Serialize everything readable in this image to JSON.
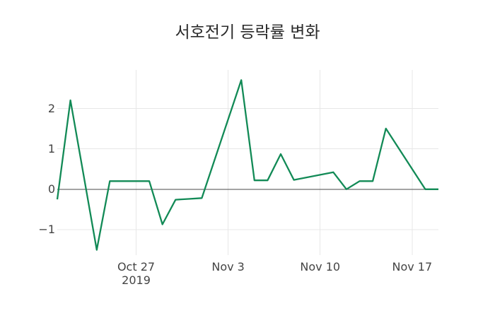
{
  "title": "서호전기 등락률 변화",
  "colors": {
    "line": "#128a56",
    "grid": "#e7e7e7",
    "zero_line": "#4a4a4a",
    "tick_text": "#444444",
    "title_text": "#2b2b2b",
    "background": "#ffffff"
  },
  "chart_data": {
    "type": "line",
    "title": "서호전기 등락률 변화",
    "xlabel": "",
    "ylabel": "",
    "legend": false,
    "grid": true,
    "zeroline": true,
    "x_range": [
      "2019-10-21",
      "2019-11-19"
    ],
    "y_range": [
      -1.63,
      2.95
    ],
    "y_ticks": [
      {
        "value": 2,
        "label": "2"
      },
      {
        "value": 1,
        "label": "1"
      },
      {
        "value": 0,
        "label": "0"
      },
      {
        "value": -1,
        "label": "−1"
      }
    ],
    "x_ticks": [
      {
        "day_offset": 6,
        "label": "Oct 27",
        "sublabel": "2019"
      },
      {
        "day_offset": 13,
        "label": "Nov 3",
        "sublabel": ""
      },
      {
        "day_offset": 20,
        "label": "Nov 10",
        "sublabel": ""
      },
      {
        "day_offset": 27,
        "label": "Nov 17",
        "sublabel": ""
      }
    ],
    "series": [
      {
        "name": "서호전기 등락률",
        "color": "#128a56",
        "dates": [
          "2019-10-21",
          "2019-10-22",
          "2019-10-23",
          "2019-10-24",
          "2019-10-25",
          "2019-10-28",
          "2019-10-29",
          "2019-10-30",
          "2019-10-31",
          "2019-11-01",
          "2019-11-04",
          "2019-11-05",
          "2019-11-06",
          "2019-11-07",
          "2019-11-08",
          "2019-11-11",
          "2019-11-12",
          "2019-11-13",
          "2019-11-14",
          "2019-11-15",
          "2019-11-18",
          "2019-11-19"
        ],
        "day_offsets": [
          0,
          1,
          2,
          3,
          4,
          7,
          8,
          9,
          10,
          11,
          14,
          15,
          16,
          17,
          18,
          21,
          22,
          23,
          24,
          25,
          28,
          29
        ],
        "values": [
          -0.25,
          2.2,
          0.35,
          -1.5,
          0.2,
          0.2,
          -0.87,
          -0.26,
          -0.24,
          -0.22,
          2.7,
          0.22,
          0.22,
          0.87,
          0.23,
          0.42,
          0,
          0.2,
          0.2,
          1.5,
          0,
          0
        ]
      }
    ]
  }
}
